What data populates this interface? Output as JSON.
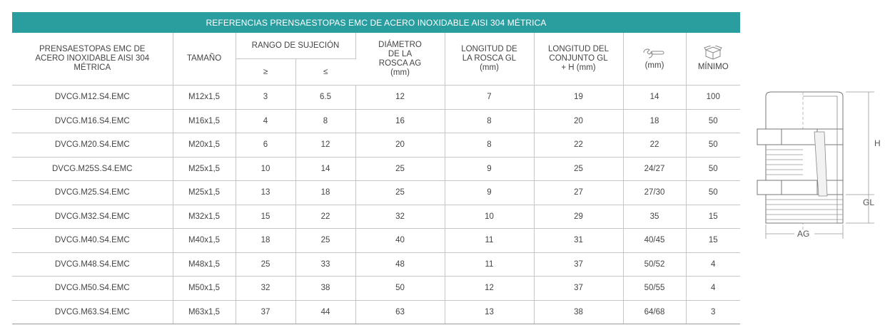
{
  "title": "REFERENCIAS PRENSAESTOPAS EMC DE ACERO INOXIDABLE AISI 304 MÉTRICA",
  "headers": {
    "product": "PRENSAESTOPAS EMC DE ACERO INOXIDABLE AISI 304 MÉTRICA",
    "size": "TAMAÑO",
    "clamp_range": "RANGO DE SUJECIÓN",
    "clamp_min": "≥",
    "clamp_max": "≤",
    "thread_diameter": "DIÁMETRO DE LA ROSCA AG (mm)",
    "thread_length": "LONGITUD DE LA ROSCA GL (mm)",
    "total_length": "LONGITUD DEL CONJUNTO GL + H (mm)",
    "wrench": "(mm)",
    "minimum": "MÍNIMO"
  },
  "icons": {
    "wrench": "wrench-icon",
    "box": "box-icon"
  },
  "rows": [
    {
      "ref": "DVCG.M12.S4.EMC",
      "size": "M12x1,5",
      "min": "3",
      "max": "6.5",
      "ag": "12",
      "gl": "7",
      "glh": "19",
      "wrench": "14",
      "qty": "100"
    },
    {
      "ref": "DVCG.M16.S4.EMC",
      "size": "M16x1,5",
      "min": "4",
      "max": "8",
      "ag": "16",
      "gl": "8",
      "glh": "20",
      "wrench": "18",
      "qty": "50"
    },
    {
      "ref": "DVCG.M20.S4.EMC",
      "size": "M20x1,5",
      "min": "6",
      "max": "12",
      "ag": "20",
      "gl": "8",
      "glh": "22",
      "wrench": "22",
      "qty": "50"
    },
    {
      "ref": "DVCG.M25S.S4.EMC",
      "size": "M25x1,5",
      "min": "10",
      "max": "14",
      "ag": "25",
      "gl": "9",
      "glh": "25",
      "wrench": "24/27",
      "qty": "50"
    },
    {
      "ref": "DVCG.M25.S4.EMC",
      "size": "M25x1,5",
      "min": "13",
      "max": "18",
      "ag": "25",
      "gl": "9",
      "glh": "27",
      "wrench": "27/30",
      "qty": "50"
    },
    {
      "ref": "DVCG.M32.S4.EMC",
      "size": "M32x1,5",
      "min": "15",
      "max": "22",
      "ag": "32",
      "gl": "10",
      "glh": "29",
      "wrench": "35",
      "qty": "15"
    },
    {
      "ref": "DVCG.M40.S4.EMC",
      "size": "M40x1,5",
      "min": "18",
      "max": "25",
      "ag": "40",
      "gl": "11",
      "glh": "31",
      "wrench": "40/45",
      "qty": "15"
    },
    {
      "ref": "DVCG.M48.S4.EMC",
      "size": "M48x1,5",
      "min": "25",
      "max": "33",
      "ag": "48",
      "gl": "11",
      "glh": "37",
      "wrench": "50/52",
      "qty": "4"
    },
    {
      "ref": "DVCG.M50.S4.EMC",
      "size": "M50x1,5",
      "min": "32",
      "max": "38",
      "ag": "50",
      "gl": "12",
      "glh": "37",
      "wrench": "50/55",
      "qty": "4"
    },
    {
      "ref": "DVCG.M63.S4.EMC",
      "size": "M63x1,5",
      "min": "37",
      "max": "44",
      "ag": "63",
      "gl": "13",
      "glh": "38",
      "wrench": "64/68",
      "qty": "3"
    }
  ],
  "drawing": {
    "label_h": "H",
    "label_gl": "GL",
    "label_ag": "AG"
  }
}
